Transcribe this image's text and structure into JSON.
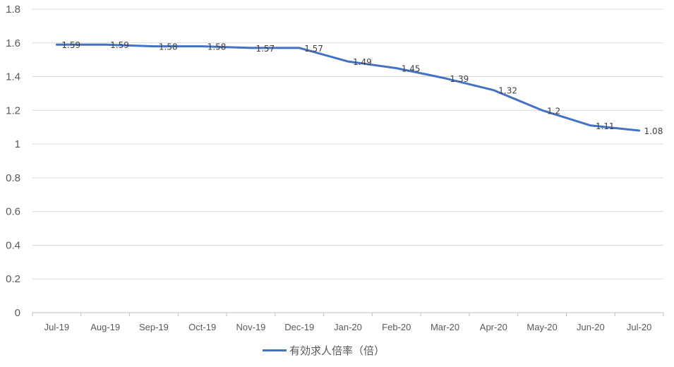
{
  "chart_data": {
    "type": "line",
    "categories": [
      "Jul-19",
      "Aug-19",
      "Sep-19",
      "Oct-19",
      "Nov-19",
      "Dec-19",
      "Jan-20",
      "Feb-20",
      "Mar-20",
      "Apr-20",
      "May-20",
      "Jun-20",
      "Jul-20"
    ],
    "series": [
      {
        "name": "有効求人倍率（倍）",
        "values": [
          1.59,
          1.59,
          1.58,
          1.58,
          1.57,
          1.57,
          1.49,
          1.45,
          1.39,
          1.32,
          1.2,
          1.11,
          1.08
        ],
        "data_labels": [
          "1.59",
          "1.59",
          "1.58",
          "1.58",
          "1.57",
          "1.57",
          "1.49",
          "1.45",
          "1.39",
          "1.32",
          "1.2",
          "1.11",
          "1.08"
        ],
        "color": "#4472c4"
      }
    ],
    "y_ticks": [
      "0",
      "0.2",
      "0.4",
      "0.6",
      "0.8",
      "1",
      "1.2",
      "1.4",
      "1.6",
      "1.8"
    ],
    "ylim": [
      0,
      1.8
    ],
    "grid": true,
    "legend_position": "bottom"
  }
}
